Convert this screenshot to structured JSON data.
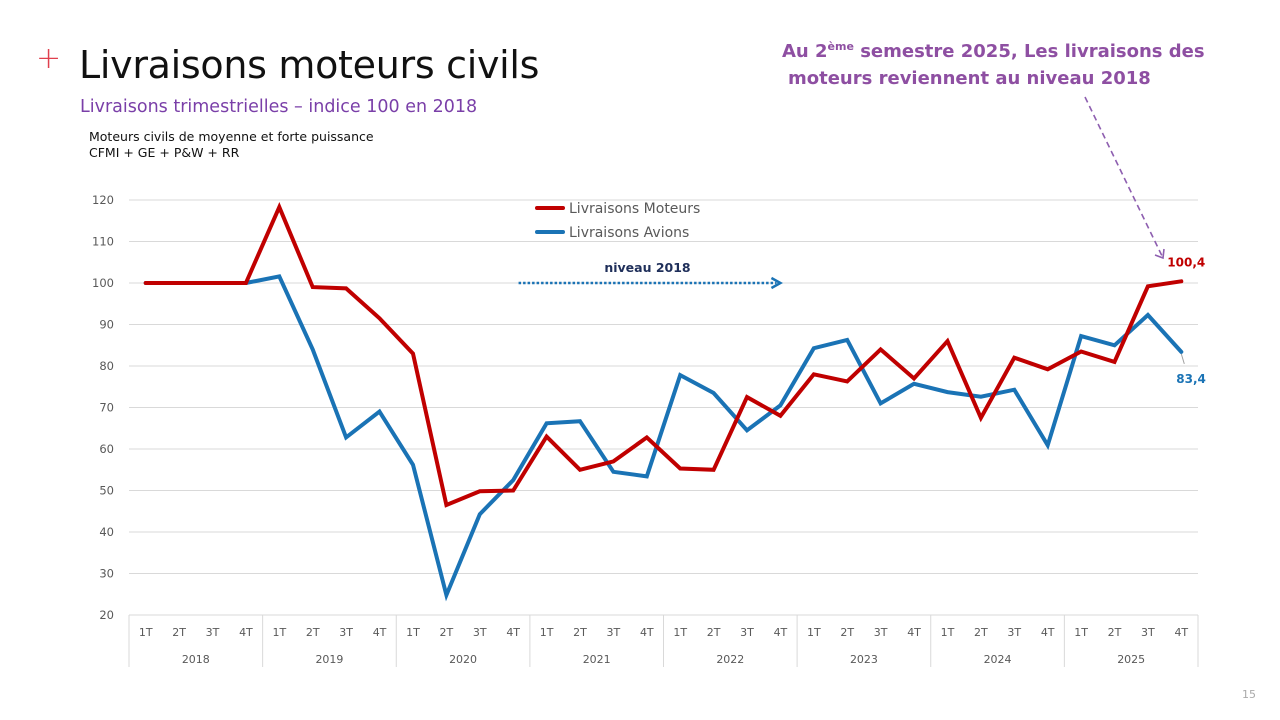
{
  "header": {
    "plus_icon": "+",
    "title": "Livraisons moteurs civils",
    "subtitle": "Livraisons trimestrielles – indice 100 en 2018",
    "note_line1": "Moteurs civils de moyenne et forte puissance",
    "note_line2": "CFMI + GE + P&W + RR"
  },
  "callout": {
    "part1": "Au 2",
    "sup": "ème",
    "part2": " semestre 2025, Les livraisons des",
    "line2": "moteurs reviennent au niveau 2018",
    "color": "#8e4fa2"
  },
  "page_number": "15",
  "colors": {
    "moteurs": "#c00000",
    "avions": "#1a73b5",
    "niveau_arrow": "#1a73b5",
    "callout_arrow": "#8e5fb0",
    "grid": "#d9d9d9"
  },
  "chart_data": {
    "type": "line",
    "title": "Livraisons moteurs civils",
    "subtitle": "Livraisons trimestrielles – indice 100 en 2018",
    "xlabel": "",
    "ylabel": "",
    "ylim": [
      20,
      120
    ],
    "yticks": [
      20,
      30,
      40,
      50,
      60,
      70,
      80,
      90,
      100,
      110,
      120
    ],
    "grid": true,
    "legend_position": "top-center",
    "quarters": [
      "1T",
      "2T",
      "3T",
      "4T"
    ],
    "years": [
      "2018",
      "2019",
      "2020",
      "2021",
      "2022",
      "2023",
      "2024",
      "2025"
    ],
    "x": [
      "2018 1T",
      "2018 2T",
      "2018 3T",
      "2018 4T",
      "2019 1T",
      "2019 2T",
      "2019 3T",
      "2019 4T",
      "2020 1T",
      "2020 2T",
      "2020 3T",
      "2020 4T",
      "2021 1T",
      "2021 2T",
      "2021 3T",
      "2021 4T",
      "2022 1T",
      "2022 2T",
      "2022 3T",
      "2022 4T",
      "2023 1T",
      "2023 2T",
      "2023 3T",
      "2023 4T",
      "2024 1T",
      "2024 2T",
      "2024 3T",
      "2024 4T",
      "2025 1T",
      "2025 2T",
      "2025 3T",
      "2025 4T"
    ],
    "series": [
      {
        "name": "Livraisons Moteurs",
        "values": [
          100,
          100,
          100,
          100,
          118.3,
          99,
          98.7,
          91.5,
          83,
          46.5,
          49.8,
          50,
          63,
          55,
          57,
          62.8,
          55.3,
          55,
          72.5,
          68,
          78,
          76.3,
          84,
          77,
          86,
          67.5,
          82,
          79.2,
          83.5,
          81,
          99.2,
          100.4
        ]
      },
      {
        "name": "Livraisons Avions",
        "values": [
          100,
          100,
          100,
          100,
          101.6,
          84,
          62.8,
          69,
          56.2,
          24.8,
          44.3,
          52.5,
          66.2,
          66.7,
          54.5,
          53.4,
          77.8,
          73.5,
          64.5,
          70.5,
          84.3,
          86.3,
          71,
          75.7,
          73.7,
          72.6,
          74.3,
          60.9,
          87.2,
          85,
          92.3,
          83.4
        ]
      }
    ],
    "annotations": [
      {
        "text": "niveau 2018",
        "type": "dotted-arrow",
        "y": 100,
        "from": "2021 1T",
        "to": "2022 4T"
      },
      {
        "text": "100,4",
        "series": "Livraisons Moteurs",
        "x": "2025 4T"
      },
      {
        "text": "83,4",
        "series": "Livraisons Avions",
        "x": "2025 4T"
      }
    ]
  }
}
